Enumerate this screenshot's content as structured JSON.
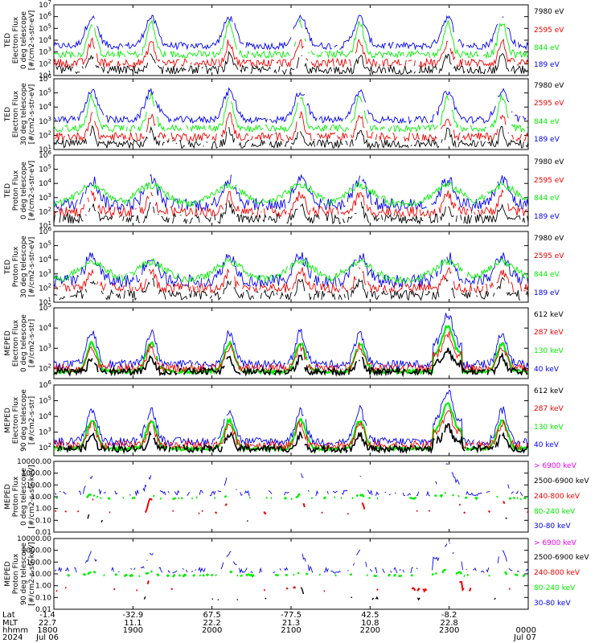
{
  "colors": {
    "blue": "#0000ee",
    "red": "#ee0000",
    "green": "#00ee00",
    "black": "#000000",
    "magenta": "#ee00ee"
  },
  "chart_data": [
    {
      "type": "line",
      "ylabel": [
        "TED",
        "Electron Flux",
        "0 deg telescope",
        "[#/cm2-s-str-eV]"
      ],
      "yscale": "log",
      "yticks": [
        "10^1",
        "10^2",
        "10^3",
        "10^4",
        "10^5",
        "10^6",
        "10^7"
      ],
      "ylim": [
        1,
        7
      ],
      "series": [
        {
          "name": "7980 eV",
          "color": "black"
        },
        {
          "name": "2595 eV",
          "color": "red"
        },
        {
          "name": "844 eV",
          "color": "green"
        },
        {
          "name": "189 eV",
          "color": "blue"
        }
      ]
    },
    {
      "type": "line",
      "ylabel": [
        "TED",
        "Electron Flux",
        "30 deg telescope",
        "[#/cm2-s-str-eV]"
      ],
      "yscale": "log",
      "yticks": [
        "10^1",
        "10^2",
        "10^3",
        "10^4",
        "10^5",
        "10^6"
      ],
      "ylim": [
        1,
        6
      ],
      "series": [
        {
          "name": "7980 eV",
          "color": "black"
        },
        {
          "name": "2595 eV",
          "color": "red"
        },
        {
          "name": "844 eV",
          "color": "green"
        },
        {
          "name": "189 eV",
          "color": "blue"
        }
      ]
    },
    {
      "type": "line",
      "ylabel": [
        "TED",
        "Proton Flux",
        "0 deg telescope",
        "[#/cm2-s-str-eV]"
      ],
      "yscale": "log",
      "yticks": [
        "10^1",
        "10^2",
        "10^3",
        "10^4",
        "10^5",
        "10^6"
      ],
      "ylim": [
        1,
        6
      ],
      "series": [
        {
          "name": "7980 eV",
          "color": "black"
        },
        {
          "name": "2595 eV",
          "color": "red"
        },
        {
          "name": "844 eV",
          "color": "green"
        },
        {
          "name": "189 eV",
          "color": "blue"
        }
      ]
    },
    {
      "type": "line",
      "ylabel": [
        "TED",
        "Proton Flux",
        "30 deg telescope",
        "[#/cm2-s-str-eV]"
      ],
      "yscale": "log",
      "yticks": [
        "10^1",
        "10^2",
        "10^3",
        "10^4",
        "10^5",
        "10^6"
      ],
      "ylim": [
        1,
        6
      ],
      "series": [
        {
          "name": "7980 eV",
          "color": "black"
        },
        {
          "name": "2595 eV",
          "color": "red"
        },
        {
          "name": "844 eV",
          "color": "green"
        },
        {
          "name": "189 eV",
          "color": "blue"
        }
      ]
    },
    {
      "type": "line",
      "ylabel": [
        "MEPED",
        "Electron Flux",
        "0 deg telescope",
        "[#/cm2-s-str]"
      ],
      "yscale": "log",
      "yticks": [
        "10^2",
        "10^3",
        "10^4",
        "10^5"
      ],
      "ylim": [
        1.5,
        5
      ],
      "series": [
        {
          "name": "612 keV",
          "color": "black"
        },
        {
          "name": "287 keV",
          "color": "red"
        },
        {
          "name": "130 keV",
          "color": "green"
        },
        {
          "name": "40 keV",
          "color": "blue"
        }
      ]
    },
    {
      "type": "line",
      "ylabel": [
        "MEPED",
        "Electron Flux",
        "90 deg telescope",
        "[#/cm2-s-str]"
      ],
      "yscale": "log",
      "yticks": [
        "10^2",
        "10^3",
        "10^4",
        "10^5",
        "10^6"
      ],
      "ylim": [
        1.5,
        6
      ],
      "series": [
        {
          "name": "612 keV",
          "color": "black"
        },
        {
          "name": "287 keV",
          "color": "red"
        },
        {
          "name": "130 keV",
          "color": "green"
        },
        {
          "name": "40 keV",
          "color": "blue"
        }
      ]
    },
    {
      "type": "line",
      "ylabel": [
        "MEPED",
        "Proton Flux",
        "0 deg telescope",
        "[#/cm2-s-str-keV]"
      ],
      "yscale": "log",
      "yticks": [
        "0.01",
        "0.10",
        "1.00",
        "10.00",
        "100.00",
        "1000.00",
        "10000.00"
      ],
      "ylim": [
        -2,
        4
      ],
      "series": [
        {
          "name": "> 6900 keV",
          "color": "magenta"
        },
        {
          "name": "2500-6900 keV",
          "color": "black"
        },
        {
          "name": "240-800 keV",
          "color": "red"
        },
        {
          "name": "80-240 keV",
          "color": "green"
        },
        {
          "name": "30-80 keV",
          "color": "blue"
        }
      ]
    },
    {
      "type": "line",
      "ylabel": [
        "MEPED",
        "Proton Flux",
        "90 deg telescope",
        "[#/cm2-s-str-keV]"
      ],
      "yscale": "log",
      "yticks": [
        "0.01",
        "0.10",
        "1.00",
        "10.00",
        "100.00",
        "1000.00",
        "10000.00"
      ],
      "ylim": [
        -2,
        4
      ],
      "series": [
        {
          "name": "> 6900 keV",
          "color": "magenta"
        },
        {
          "name": "2500-6900 keV",
          "color": "black"
        },
        {
          "name": "240-800 keV",
          "color": "red"
        },
        {
          "name": "80-240 keV",
          "color": "green"
        },
        {
          "name": "30-80 keV",
          "color": "blue"
        }
      ]
    }
  ],
  "x_axis": {
    "row_labels": [
      "Lat",
      "MLT",
      "hhmm",
      "2024"
    ],
    "ticks": [
      {
        "lat": "-1.4",
        "mlt": "22.7",
        "hhmm": "1800",
        "date": "Jul 06",
        "frac": 0.0
      },
      {
        "lat": "-32.9",
        "mlt": "11.1",
        "hhmm": "1900",
        "date": "",
        "frac": 0.16667
      },
      {
        "lat": "67.5",
        "mlt": "22.2",
        "hhmm": "2000",
        "date": "",
        "frac": 0.33333
      },
      {
        "lat": "-77.5",
        "mlt": "21.3",
        "hhmm": "2100",
        "date": "",
        "frac": 0.5
      },
      {
        "lat": "42.5",
        "mlt": "10.8",
        "hhmm": "2200",
        "date": "",
        "frac": 0.66667
      },
      {
        "lat": "-8.2",
        "mlt": "22.8",
        "hhmm": "2300",
        "date": "",
        "frac": 0.83333
      },
      {
        "lat": "",
        "mlt": "",
        "hhmm": "0000",
        "date": "Jul 07",
        "frac": 1.0
      }
    ]
  }
}
